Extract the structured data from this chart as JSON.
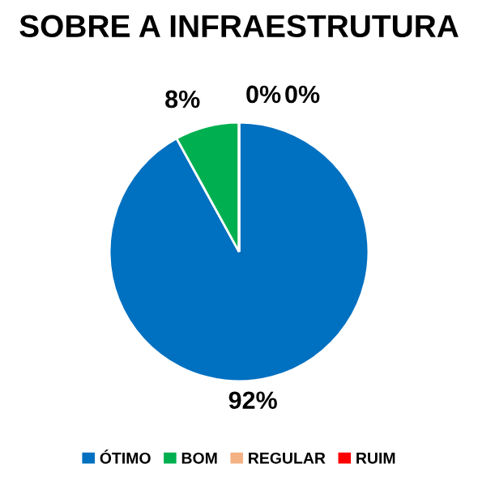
{
  "chart_data": {
    "type": "pie",
    "title": "SOBRE A INFRAESTRUTURA",
    "categories": [
      "ÓTIMO",
      "BOM",
      "REGULAR",
      "RUIM"
    ],
    "values": [
      92,
      8,
      0,
      0
    ],
    "colors": [
      "#0070c0",
      "#00b050",
      "#f4b183",
      "#ff0000"
    ],
    "value_labels": [
      "92%",
      "8%",
      "0%",
      "0%"
    ],
    "legend": "bottom"
  }
}
